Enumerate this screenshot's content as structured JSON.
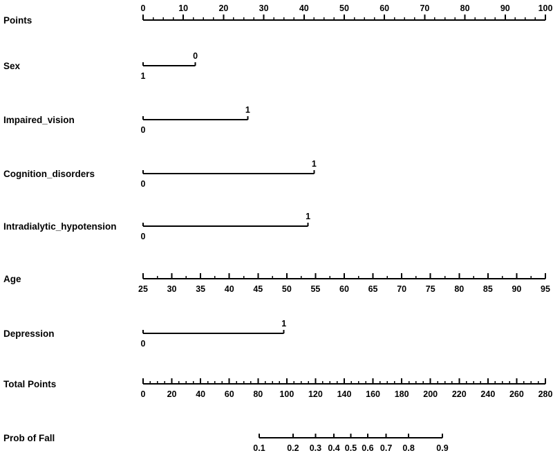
{
  "chart_data": {
    "type": "nomogram",
    "title": "",
    "ink_color": "#000000",
    "background_color": "#ffffff",
    "points_scale": {
      "min": 0,
      "max": 100
    },
    "rows": [
      {
        "label": "Points",
        "kind": "axis",
        "min": 0,
        "max": 100,
        "tick_step": 10,
        "minor_step": 2.5,
        "labels_side": "above",
        "tick_labels": [
          "0",
          "10",
          "20",
          "30",
          "40",
          "50",
          "60",
          "70",
          "80",
          "90",
          "100"
        ]
      },
      {
        "label": "Sex",
        "kind": "category",
        "levels": [
          {
            "text": "1",
            "points": 0,
            "label_pos": "below"
          },
          {
            "text": "0",
            "points": 13,
            "label_pos": "above"
          }
        ]
      },
      {
        "label": "Impaired_vision",
        "kind": "category",
        "levels": [
          {
            "text": "0",
            "points": 0,
            "label_pos": "below"
          },
          {
            "text": "1",
            "points": 26,
            "label_pos": "above"
          }
        ]
      },
      {
        "label": "Cognition_disorders",
        "kind": "category",
        "levels": [
          {
            "text": "0",
            "points": 0,
            "label_pos": "below"
          },
          {
            "text": "1",
            "points": 42.5,
            "label_pos": "above"
          }
        ]
      },
      {
        "label": "Intradialytic_hypotension",
        "kind": "category",
        "levels": [
          {
            "text": "0",
            "points": 0,
            "label_pos": "below"
          },
          {
            "text": "1",
            "points": 41,
            "label_pos": "above"
          }
        ]
      },
      {
        "label": "Age",
        "kind": "axis",
        "min": 25,
        "max": 95,
        "tick_step": 5,
        "minor_step": 2.5,
        "labels_side": "below",
        "tick_labels": [
          "25",
          "30",
          "35",
          "40",
          "45",
          "50",
          "55",
          "60",
          "65",
          "70",
          "75",
          "80",
          "85",
          "90",
          "95"
        ]
      },
      {
        "label": "Depression",
        "kind": "category",
        "levels": [
          {
            "text": "0",
            "points": 0,
            "label_pos": "below"
          },
          {
            "text": "1",
            "points": 35,
            "label_pos": "above"
          }
        ]
      },
      {
        "label": "Total Points",
        "kind": "axis",
        "min": 0,
        "max": 280,
        "tick_step": 20,
        "minor_step": 5,
        "labels_side": "below",
        "tick_labels": [
          "0",
          "20",
          "40",
          "60",
          "80",
          "100",
          "120",
          "140",
          "160",
          "180",
          "200",
          "220",
          "240",
          "260",
          "280"
        ]
      },
      {
        "label": "Prob of Fall",
        "kind": "prob_axis",
        "scale": "logit",
        "min": 0.1,
        "max": 0.9,
        "labels_side": "below",
        "tick_labels": [
          "0.1",
          "0.2",
          "0.3",
          "0.4",
          "0.5",
          "0.6",
          "0.7",
          "0.8",
          "0.9"
        ]
      }
    ]
  }
}
